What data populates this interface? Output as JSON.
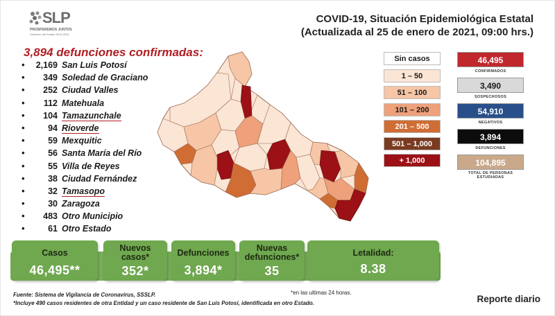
{
  "header": {
    "logo_text": "SLP",
    "logo_slogan": "PROSPEREMOS JUNTOS",
    "logo_sub": "Gobierno del Estado 2015-2021",
    "title_line1": "COVID-19, Situación Epidemiológica Estatal",
    "title_line2": "(Actualizada al 25 de enero de 2021, 09:00 hrs.)"
  },
  "deaths": {
    "title": "3,894 defunciones confirmadas:",
    "rows": [
      {
        "bullet": "•",
        "num": "2,169",
        "name": "San Luis Potosí",
        "underline": false
      },
      {
        "bullet": "•",
        "num": "349",
        "name": "Soledad de Graciano",
        "underline": false
      },
      {
        "bullet": "•",
        "num": "252",
        "name": "Ciudad Valles",
        "underline": false
      },
      {
        "bullet": "•",
        "num": "112",
        "name": "Matehuala",
        "underline": false
      },
      {
        "bullet": "•",
        "num": "104",
        "name": "Tamazunchale",
        "underline": true
      },
      {
        "bullet": "•",
        "num": "94",
        "name": "Rioverde",
        "underline": true
      },
      {
        "bullet": "•",
        "num": "59",
        "name": "Mexquitic",
        "underline": false
      },
      {
        "bullet": "•",
        "num": "56",
        "name": "Santa María del Río",
        "underline": false
      },
      {
        "bullet": "•",
        "num": "55",
        "name": "Villa de Reyes",
        "underline": false
      },
      {
        "bullet": "•",
        "num": "38",
        "name": "Ciudad Fernández",
        "underline": false
      },
      {
        "bullet": "•",
        "num": "32",
        "name": "Tamasopo",
        "underline": true
      },
      {
        "bullet": "•",
        "num": "30",
        "name": "Zaragoza",
        "underline": false
      },
      {
        "bullet": "•",
        "num": "483",
        "name": "Otro Municipio",
        "underline": false
      },
      {
        "bullet": "•",
        "num": "61",
        "name": "Otro Estado",
        "underline": false
      }
    ]
  },
  "legend": [
    {
      "label": "Sin casos",
      "color": "#ffffff",
      "text": "#1a1a1a"
    },
    {
      "label": "1 – 50",
      "color": "#fbe5d4",
      "text": "#1a1a1a"
    },
    {
      "label": "51 – 100",
      "color": "#f6c6a6",
      "text": "#1a1a1a"
    },
    {
      "label": "101 – 200",
      "color": "#eea17a",
      "text": "#1a1a1a"
    },
    {
      "label": "201 – 500",
      "color": "#cf6d35",
      "text": "#ffffff"
    },
    {
      "label": "501 – 1,000",
      "color": "#7a3b20",
      "text": "#ffffff"
    },
    {
      "label": "+ 1,000",
      "color": "#9b1116",
      "text": "#ffffff"
    }
  ],
  "stats": [
    {
      "value": "46,495",
      "label": "CONFIRMADOS",
      "bg": "#c0282d",
      "fg": "#ffffff"
    },
    {
      "value": "3,490",
      "label": "SOSPECHOSOS",
      "bg": "#d9d9d9",
      "fg": "#1a1a1a"
    },
    {
      "value": "54,910",
      "label": "NEGATIVOS",
      "bg": "#284f8a",
      "fg": "#ffffff"
    },
    {
      "value": "3,894",
      "label": "DEFUNCIONES",
      "bg": "#0c0c0c",
      "fg": "#ffffff"
    },
    {
      "value": "104,895",
      "label": "TOTAL DE PERSONAS ESTUDIADAS",
      "bg": "#c9a98a",
      "fg": "#ffffff"
    }
  ],
  "tiles": {
    "casos": {
      "label": "Casos",
      "value": "46,495**"
    },
    "nuevos_casos": {
      "label_line1": "Nuevos",
      "label_line2": "casos*",
      "value": "352*"
    },
    "defunciones": {
      "label": "Defunciones",
      "value": "3,894*"
    },
    "nuevas_defunciones": {
      "label_line1": "Nuevas",
      "label_line2": "defunciones*",
      "value": "35"
    },
    "letalidad": {
      "label": "Letalidad:",
      "value": "8.38"
    }
  },
  "footer": {
    "note": "*en las ultimas 24 horas.",
    "source": "Fuente: Sistema de Vigilancia de Coronavirus, SSSLP.",
    "source_note": "*Incluye 490 casos residentes de otra Entidad y un caso residente de San Luis Potosí, identificada en otro Estado.",
    "report": "Reporte diario"
  },
  "colors": {
    "accent_red": "#b01e23",
    "band_green": "#6fa84f"
  }
}
